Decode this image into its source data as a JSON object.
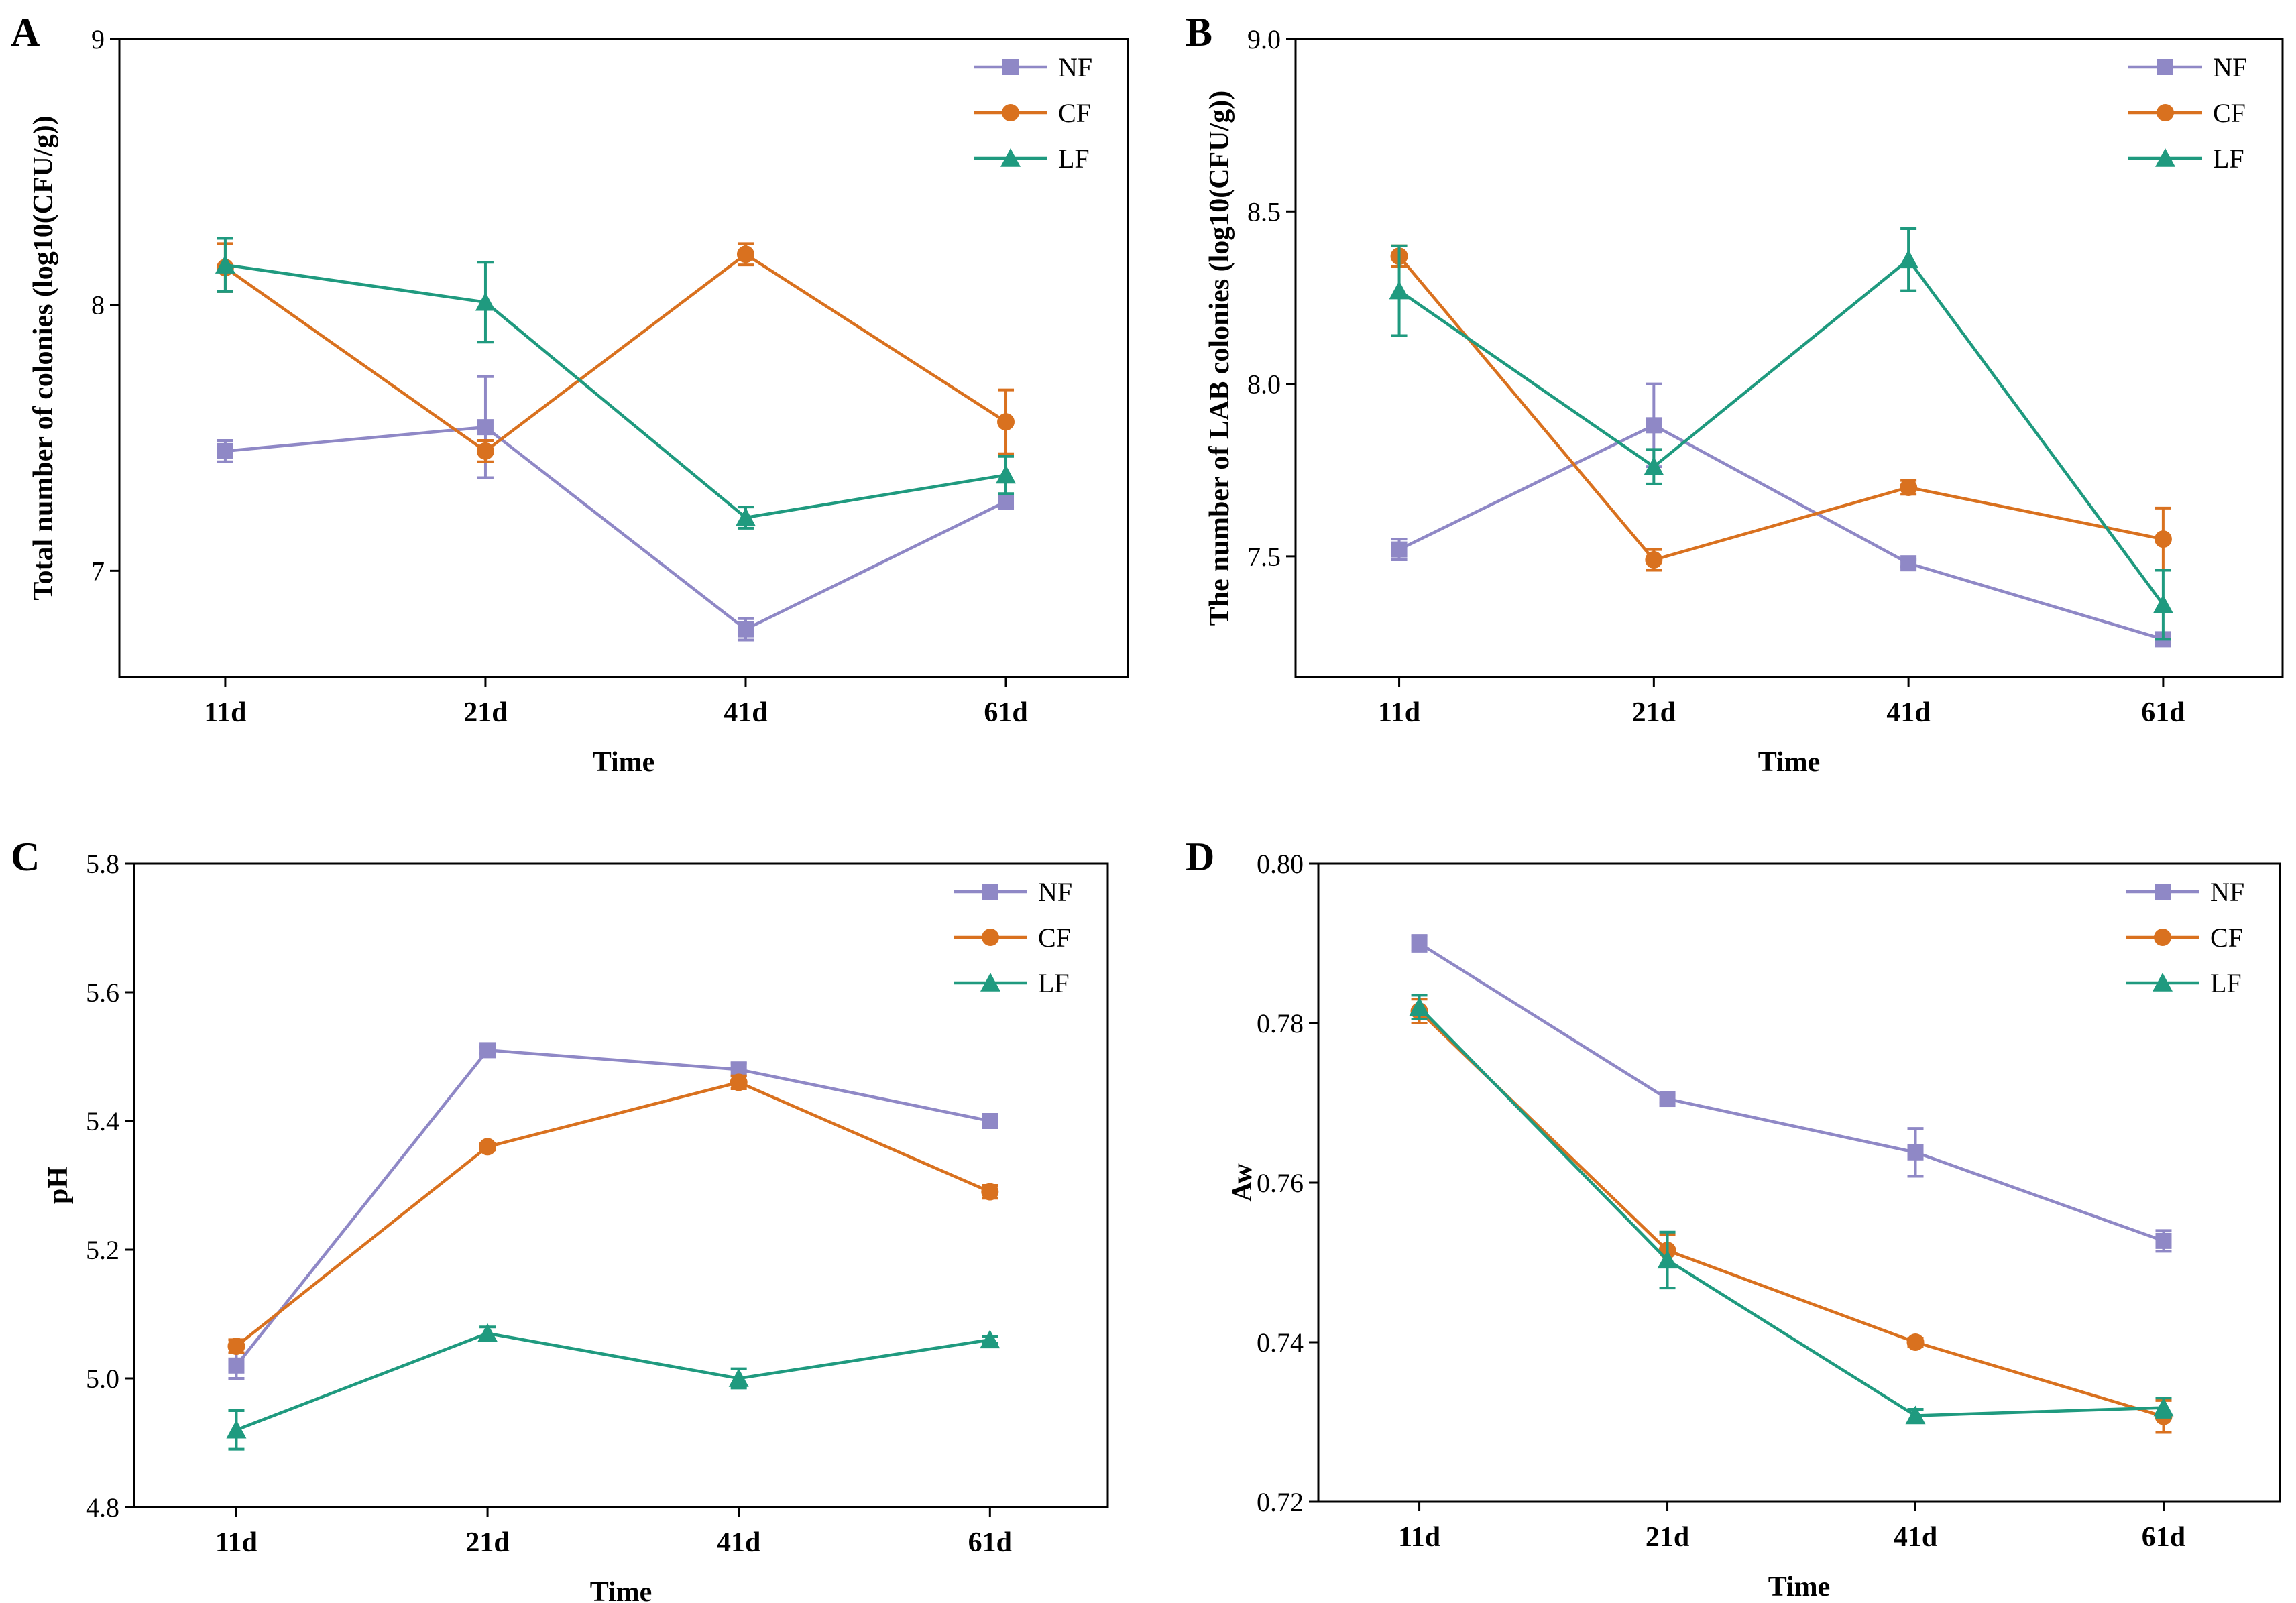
{
  "colors": {
    "NF": "#8f88c6",
    "CF": "#d9711f",
    "LF": "#1f9a7f"
  },
  "chart_data": [
    {
      "panel_label": "A",
      "type": "line",
      "xlabel": "Time",
      "ylabel": "Total number of colonies (log10(CFU/g))",
      "categories": [
        "11d",
        "21d",
        "41d",
        "61d"
      ],
      "ylim": [
        6.6,
        9
      ],
      "yticks": [
        "7",
        "8",
        "9"
      ],
      "yticks_values": [
        7,
        8,
        9
      ],
      "legend_position": "top-right",
      "series": [
        {
          "name": "NF",
          "marker": "square",
          "values": [
            7.45,
            7.54,
            6.78,
            7.26
          ],
          "errors": [
            0.04,
            0.19,
            0.04,
            0.02
          ]
        },
        {
          "name": "CF",
          "marker": "circle",
          "values": [
            8.14,
            7.45,
            8.19,
            7.56
          ],
          "errors": [
            0.09,
            0.04,
            0.04,
            0.12
          ]
        },
        {
          "name": "LF",
          "marker": "triangle",
          "values": [
            8.15,
            8.01,
            7.2,
            7.36
          ],
          "errors": [
            0.1,
            0.15,
            0.04,
            0.07
          ]
        }
      ]
    },
    {
      "panel_label": "B",
      "type": "line",
      "xlabel": "Time",
      "ylabel": "The number of LAB colonies (log10(CFU/g))",
      "categories": [
        "11d",
        "21d",
        "41d",
        "61d"
      ],
      "ylim": [
        7.15,
        9.0
      ],
      "yticks": [
        "7.5",
        "8.0",
        "8.5",
        "9.0"
      ],
      "yticks_values": [
        7.5,
        8.0,
        8.5,
        9.0
      ],
      "legend_position": "top-right",
      "series": [
        {
          "name": "NF",
          "marker": "square",
          "values": [
            7.52,
            7.88,
            7.48,
            7.26
          ],
          "errors": [
            0.03,
            0.12,
            0.01,
            0.01
          ]
        },
        {
          "name": "CF",
          "marker": "circle",
          "values": [
            8.37,
            7.49,
            7.7,
            7.55
          ],
          "errors": [
            0.03,
            0.03,
            0.02,
            0.09
          ]
        },
        {
          "name": "LF",
          "marker": "triangle",
          "values": [
            8.27,
            7.76,
            8.36,
            7.36
          ],
          "errors": [
            0.13,
            0.05,
            0.09,
            0.1
          ]
        }
      ]
    },
    {
      "panel_label": "C",
      "type": "line",
      "xlabel": "Time",
      "ylabel": "pH",
      "categories": [
        "11d",
        "21d",
        "41d",
        "61d"
      ],
      "ylim": [
        4.8,
        5.8
      ],
      "yticks": [
        "4.8",
        "5.0",
        "5.2",
        "5.4",
        "5.6",
        "5.8"
      ],
      "yticks_values": [
        4.8,
        5.0,
        5.2,
        5.4,
        5.6,
        5.8
      ],
      "legend_position": "top-right",
      "series": [
        {
          "name": "NF",
          "marker": "square",
          "values": [
            5.02,
            5.51,
            5.48,
            5.4
          ],
          "errors": [
            0.02,
            0.005,
            0.01,
            0.005
          ]
        },
        {
          "name": "CF",
          "marker": "circle",
          "values": [
            5.05,
            5.36,
            5.46,
            5.29
          ],
          "errors": [
            0.01,
            0.005,
            0.01,
            0.01
          ]
        },
        {
          "name": "LF",
          "marker": "triangle",
          "values": [
            4.92,
            5.07,
            5.0,
            5.06
          ],
          "errors": [
            0.03,
            0.01,
            0.015,
            0.005
          ]
        }
      ]
    },
    {
      "panel_label": "D",
      "type": "line",
      "xlabel": "Time",
      "ylabel": "Aw",
      "categories": [
        "11d",
        "21d",
        "41d",
        "61d"
      ],
      "ylim": [
        0.72,
        0.8
      ],
      "yticks": [
        "0.72",
        "0.74",
        "0.76",
        "0.78",
        "0.80"
      ],
      "yticks_values": [
        0.72,
        0.74,
        0.76,
        0.78,
        0.8
      ],
      "legend_position": "top-right",
      "series": [
        {
          "name": "NF",
          "marker": "square",
          "values": [
            0.79,
            0.7705,
            0.7638,
            0.7527
          ],
          "errors": [
            0.001,
            0.0005,
            0.003,
            0.0013
          ]
        },
        {
          "name": "CF",
          "marker": "circle",
          "values": [
            0.7815,
            0.7515,
            0.74,
            0.7307
          ],
          "errors": [
            0.0015,
            0.002,
            0.0005,
            0.002
          ]
        },
        {
          "name": "LF",
          "marker": "triangle",
          "values": [
            0.782,
            0.7503,
            0.7308,
            0.7318
          ],
          "errors": [
            0.0015,
            0.0035,
            0.0008,
            0.0012
          ]
        }
      ]
    }
  ]
}
